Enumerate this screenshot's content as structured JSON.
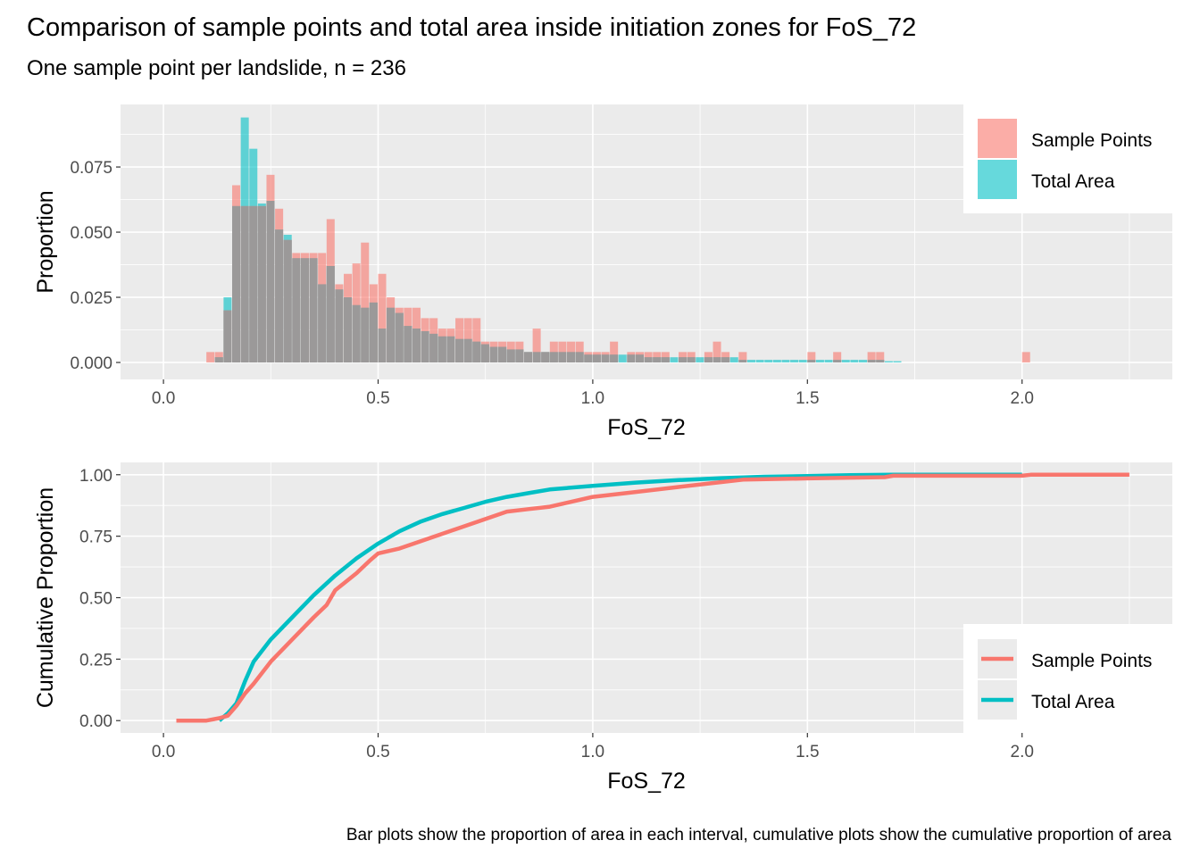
{
  "title": "Comparison of sample points and total area inside initiation zones for FoS_72",
  "subtitle": "One sample point per landslide, n = 236",
  "caption": "Bar plots show the proportion of area in each interval, cumulative plots show the cumulative proportion of area",
  "colors": {
    "sample_points": "#f8766d",
    "total_area": "#00bfc4",
    "panel_bg": "#ebebeb",
    "grid": "#ffffff",
    "overlap": "#999999"
  },
  "legend": [
    {
      "label": "Sample Points",
      "color": "#f8766d"
    },
    {
      "label": "Total Area",
      "color": "#00bfc4"
    }
  ],
  "chart_data": [
    {
      "type": "bar",
      "xlabel": "FoS_72",
      "ylabel": "Proportion",
      "xlim": [
        -0.1,
        2.35
      ],
      "ylim": [
        -0.0065,
        0.099
      ],
      "x_ticks": [
        "0.0",
        "0.5",
        "1.0",
        "1.5",
        "2.0"
      ],
      "y_ticks": [
        "0.000",
        "0.025",
        "0.050",
        "0.075"
      ],
      "grid": true,
      "legend_position": "top-right",
      "bin_width": 0.02,
      "series": [
        {
          "name": "Sample Points",
          "color": "#f8766d",
          "points": [
            [
              0.11,
              0.004
            ],
            [
              0.13,
              0.004
            ],
            [
              0.15,
              0.02
            ],
            [
              0.17,
              0.068
            ],
            [
              0.19,
              0.06
            ],
            [
              0.21,
              0.06
            ],
            [
              0.23,
              0.06
            ],
            [
              0.25,
              0.072
            ],
            [
              0.27,
              0.059
            ],
            [
              0.29,
              0.047
            ],
            [
              0.31,
              0.042
            ],
            [
              0.33,
              0.042
            ],
            [
              0.35,
              0.042
            ],
            [
              0.37,
              0.042
            ],
            [
              0.39,
              0.055
            ],
            [
              0.41,
              0.03
            ],
            [
              0.43,
              0.034
            ],
            [
              0.45,
              0.038
            ],
            [
              0.47,
              0.046
            ],
            [
              0.49,
              0.03
            ],
            [
              0.51,
              0.034
            ],
            [
              0.53,
              0.025
            ],
            [
              0.55,
              0.021
            ],
            [
              0.57,
              0.021
            ],
            [
              0.59,
              0.021
            ],
            [
              0.61,
              0.017
            ],
            [
              0.63,
              0.017
            ],
            [
              0.65,
              0.013
            ],
            [
              0.67,
              0.013
            ],
            [
              0.69,
              0.017
            ],
            [
              0.71,
              0.017
            ],
            [
              0.73,
              0.017
            ],
            [
              0.75,
              0.008
            ],
            [
              0.77,
              0.008
            ],
            [
              0.79,
              0.008
            ],
            [
              0.81,
              0.008
            ],
            [
              0.83,
              0.008
            ],
            [
              0.85,
              0.004
            ],
            [
              0.87,
              0.013
            ],
            [
              0.89,
              0.004
            ],
            [
              0.91,
              0.008
            ],
            [
              0.93,
              0.008
            ],
            [
              0.95,
              0.008
            ],
            [
              0.97,
              0.008
            ],
            [
              0.99,
              0.004
            ],
            [
              1.01,
              0.004
            ],
            [
              1.03,
              0.004
            ],
            [
              1.05,
              0.008
            ],
            [
              1.09,
              0.004
            ],
            [
              1.11,
              0.004
            ],
            [
              1.13,
              0.004
            ],
            [
              1.15,
              0.004
            ],
            [
              1.17,
              0.004
            ],
            [
              1.21,
              0.004
            ],
            [
              1.23,
              0.004
            ],
            [
              1.27,
              0.004
            ],
            [
              1.29,
              0.008
            ],
            [
              1.31,
              0.004
            ],
            [
              1.35,
              0.004
            ],
            [
              1.51,
              0.004
            ],
            [
              1.57,
              0.004
            ],
            [
              1.65,
              0.004
            ],
            [
              1.67,
              0.004
            ],
            [
              2.01,
              0.004
            ]
          ]
        },
        {
          "name": "Total Area",
          "color": "#00bfc4",
          "points": [
            [
              0.13,
              0.002
            ],
            [
              0.15,
              0.025
            ],
            [
              0.17,
              0.06
            ],
            [
              0.19,
              0.094
            ],
            [
              0.21,
              0.082
            ],
            [
              0.23,
              0.061
            ],
            [
              0.25,
              0.062
            ],
            [
              0.27,
              0.051
            ],
            [
              0.29,
              0.049
            ],
            [
              0.31,
              0.04
            ],
            [
              0.33,
              0.04
            ],
            [
              0.35,
              0.04
            ],
            [
              0.37,
              0.03
            ],
            [
              0.39,
              0.037
            ],
            [
              0.41,
              0.028
            ],
            [
              0.43,
              0.025
            ],
            [
              0.45,
              0.022
            ],
            [
              0.47,
              0.021
            ],
            [
              0.49,
              0.023
            ],
            [
              0.51,
              0.013
            ],
            [
              0.53,
              0.021
            ],
            [
              0.55,
              0.019
            ],
            [
              0.57,
              0.014
            ],
            [
              0.59,
              0.013
            ],
            [
              0.61,
              0.012
            ],
            [
              0.63,
              0.011
            ],
            [
              0.65,
              0.01
            ],
            [
              0.67,
              0.01
            ],
            [
              0.69,
              0.009
            ],
            [
              0.71,
              0.009
            ],
            [
              0.73,
              0.008
            ],
            [
              0.75,
              0.007
            ],
            [
              0.77,
              0.006
            ],
            [
              0.79,
              0.006
            ],
            [
              0.81,
              0.005
            ],
            [
              0.83,
              0.005
            ],
            [
              0.85,
              0.004
            ],
            [
              0.87,
              0.004
            ],
            [
              0.89,
              0.004
            ],
            [
              0.91,
              0.004
            ],
            [
              0.93,
              0.004
            ],
            [
              0.95,
              0.004
            ],
            [
              0.97,
              0.004
            ],
            [
              0.99,
              0.003
            ],
            [
              1.01,
              0.003
            ],
            [
              1.03,
              0.003
            ],
            [
              1.05,
              0.003
            ],
            [
              1.07,
              0.003
            ],
            [
              1.09,
              0.003
            ],
            [
              1.11,
              0.003
            ],
            [
              1.13,
              0.002
            ],
            [
              1.15,
              0.002
            ],
            [
              1.17,
              0.002
            ],
            [
              1.19,
              0.002
            ],
            [
              1.21,
              0.002
            ],
            [
              1.23,
              0.002
            ],
            [
              1.25,
              0.002
            ],
            [
              1.27,
              0.002
            ],
            [
              1.29,
              0.002
            ],
            [
              1.31,
              0.002
            ],
            [
              1.33,
              0.002
            ],
            [
              1.35,
              0.001
            ],
            [
              1.37,
              0.001
            ],
            [
              1.39,
              0.001
            ],
            [
              1.41,
              0.001
            ],
            [
              1.43,
              0.001
            ],
            [
              1.45,
              0.001
            ],
            [
              1.47,
              0.001
            ],
            [
              1.49,
              0.001
            ],
            [
              1.51,
              0.001
            ],
            [
              1.53,
              0.001
            ],
            [
              1.55,
              0.001
            ],
            [
              1.57,
              0.001
            ],
            [
              1.59,
              0.001
            ],
            [
              1.61,
              0.001
            ],
            [
              1.63,
              0.001
            ],
            [
              1.65,
              0.001
            ],
            [
              1.67,
              0.001
            ],
            [
              1.69,
              0.0005
            ],
            [
              1.71,
              0.0005
            ]
          ]
        }
      ]
    },
    {
      "type": "line",
      "xlabel": "FoS_72",
      "ylabel": "Cumulative Proportion",
      "xlim": [
        -0.1,
        2.35
      ],
      "ylim": [
        -0.05,
        1.05
      ],
      "x_ticks": [
        "0.0",
        "0.5",
        "1.0",
        "1.5",
        "2.0"
      ],
      "y_ticks": [
        "0.00",
        "0.25",
        "0.50",
        "0.75",
        "1.00"
      ],
      "grid": true,
      "legend_position": "bottom-right",
      "series": [
        {
          "name": "Sample Points",
          "color": "#f8766d",
          "points": [
            [
              0.03,
              0.0
            ],
            [
              0.1,
              0.0
            ],
            [
              0.13,
              0.01
            ],
            [
              0.15,
              0.02
            ],
            [
              0.17,
              0.06
            ],
            [
              0.19,
              0.11
            ],
            [
              0.21,
              0.15
            ],
            [
              0.25,
              0.24
            ],
            [
              0.3,
              0.33
            ],
            [
              0.35,
              0.42
            ],
            [
              0.38,
              0.47
            ],
            [
              0.4,
              0.53
            ],
            [
              0.45,
              0.6
            ],
            [
              0.48,
              0.65
            ],
            [
              0.5,
              0.68
            ],
            [
              0.55,
              0.7
            ],
            [
              0.6,
              0.73
            ],
            [
              0.65,
              0.76
            ],
            [
              0.7,
              0.79
            ],
            [
              0.75,
              0.82
            ],
            [
              0.8,
              0.85
            ],
            [
              0.85,
              0.86
            ],
            [
              0.9,
              0.87
            ],
            [
              0.95,
              0.89
            ],
            [
              1.0,
              0.91
            ],
            [
              1.1,
              0.93
            ],
            [
              1.2,
              0.95
            ],
            [
              1.3,
              0.97
            ],
            [
              1.35,
              0.98
            ],
            [
              1.5,
              0.985
            ],
            [
              1.68,
              0.99
            ],
            [
              1.7,
              0.996
            ],
            [
              2.0,
              0.996
            ],
            [
              2.02,
              1.0
            ],
            [
              2.25,
              1.0
            ]
          ]
        },
        {
          "name": "Total Area",
          "color": "#00bfc4",
          "points": [
            [
              0.13,
              0.0
            ],
            [
              0.15,
              0.03
            ],
            [
              0.17,
              0.07
            ],
            [
              0.19,
              0.16
            ],
            [
              0.21,
              0.24
            ],
            [
              0.25,
              0.33
            ],
            [
              0.3,
              0.42
            ],
            [
              0.35,
              0.51
            ],
            [
              0.4,
              0.59
            ],
            [
              0.45,
              0.66
            ],
            [
              0.5,
              0.72
            ],
            [
              0.55,
              0.77
            ],
            [
              0.6,
              0.81
            ],
            [
              0.65,
              0.84
            ],
            [
              0.7,
              0.865
            ],
            [
              0.75,
              0.89
            ],
            [
              0.8,
              0.91
            ],
            [
              0.85,
              0.925
            ],
            [
              0.9,
              0.94
            ],
            [
              1.0,
              0.955
            ],
            [
              1.1,
              0.968
            ],
            [
              1.2,
              0.978
            ],
            [
              1.3,
              0.986
            ],
            [
              1.4,
              0.992
            ],
            [
              1.5,
              0.995
            ],
            [
              1.6,
              0.998
            ],
            [
              1.7,
              1.0
            ],
            [
              2.0,
              1.0
            ]
          ]
        }
      ]
    }
  ]
}
